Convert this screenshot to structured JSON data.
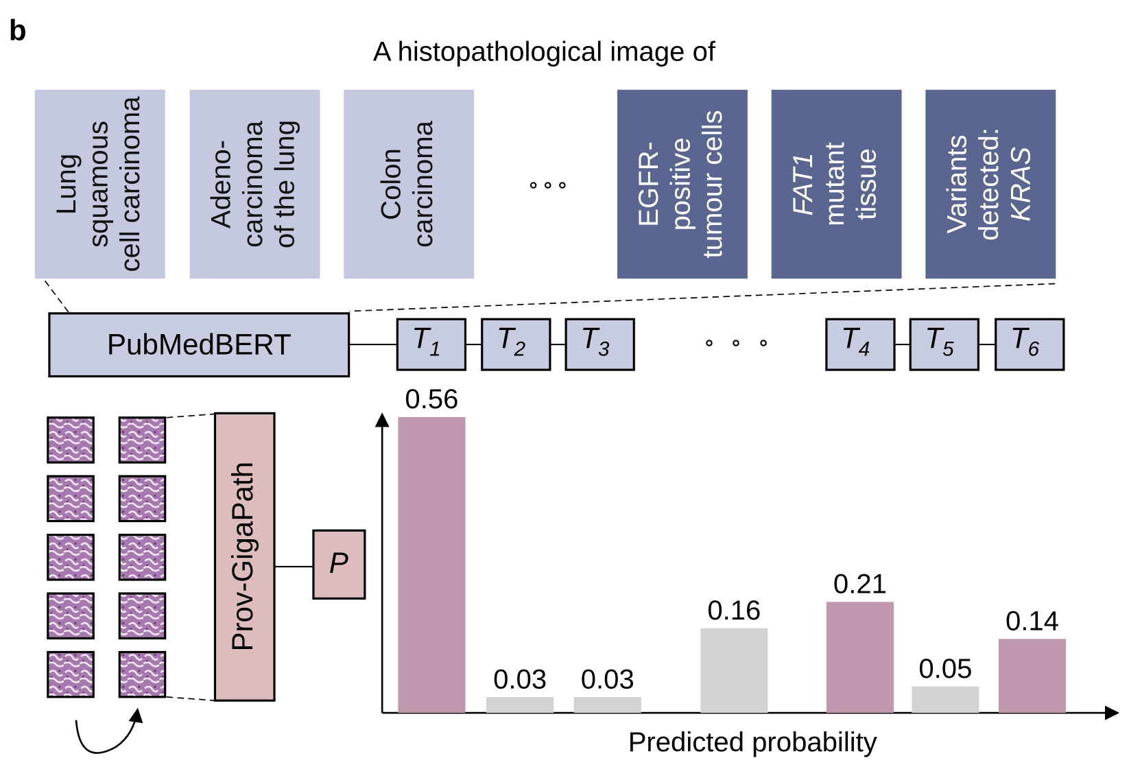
{
  "panel_label": "b",
  "prompt_prefix": "A histopathological image of",
  "text_prompts": [
    {
      "lines": [
        "Lung",
        "squamous",
        "cell carcinoma"
      ],
      "color": "#c5c9df",
      "text_color": "#111111"
    },
    {
      "lines": [
        "Adeno-",
        "carcinoma",
        "of the lung"
      ],
      "color": "#c5c9df",
      "text_color": "#111111"
    },
    {
      "lines": [
        "Colon",
        "carcinoma"
      ],
      "color": "#c5c9df",
      "text_color": "#111111"
    },
    {
      "lines": [
        "EGFR-",
        "positive",
        "tumour cells"
      ],
      "color": "#5a6590",
      "text_color": "#ffffff"
    },
    {
      "lines": [
        {
          "text": "FAT1",
          "italic": true
        },
        "mutant",
        "tissue"
      ],
      "color": "#5a6590",
      "text_color": "#ffffff"
    },
    {
      "lines": [
        "Variants",
        "detected:",
        {
          "text": "KRAS",
          "italic": true
        }
      ],
      "color": "#5a6590",
      "text_color": "#ffffff"
    }
  ],
  "text_encoder": "PubMedBERT",
  "text_embeddings": [
    {
      "symbol": "T",
      "subscript": "1"
    },
    {
      "symbol": "T",
      "subscript": "2"
    },
    {
      "symbol": "T",
      "subscript": "3"
    },
    {
      "symbol": "T",
      "subscript": "4"
    },
    {
      "symbol": "T",
      "subscript": "5"
    },
    {
      "symbol": "T",
      "subscript": "6"
    }
  ],
  "image_encoder": "Prov-GigaPath",
  "image_embedding": "P",
  "chart_data": {
    "type": "bar",
    "x_label": "Predicted probability",
    "values": [
      0.56,
      0.03,
      0.03,
      0.16,
      0.21,
      0.05,
      0.14
    ],
    "colors": [
      "#bf98ae",
      "#d3d3d5",
      "#d3d3d5",
      "#d3d3d5",
      "#bf98ae",
      "#d3d3d5",
      "#bf98ae"
    ]
  }
}
